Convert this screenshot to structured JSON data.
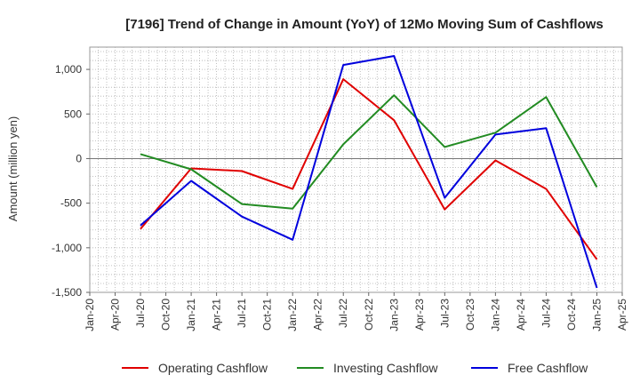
{
  "chart_data": {
    "type": "line",
    "title": "[7196]  Trend of Change in Amount (YoY) of 12Mo Moving Sum of Cashflows",
    "xlabel": "",
    "ylabel": "Amount (million yen)",
    "ylim": [
      -1500,
      1250
    ],
    "yticks": [
      1000,
      500,
      0,
      -500,
      -1000,
      -1500
    ],
    "ytick_labels": [
      "1,000",
      "500",
      "0",
      "-500",
      "-1,000",
      "-1,500"
    ],
    "categories": [
      "Jan-20",
      "Apr-20",
      "Jul-20",
      "Oct-20",
      "Jan-21",
      "Apr-21",
      "Jul-21",
      "Oct-21",
      "Jan-22",
      "Apr-22",
      "Jul-22",
      "Oct-22",
      "Jan-23",
      "Apr-23",
      "Jul-23",
      "Oct-23",
      "Jan-24",
      "Apr-24",
      "Jul-24",
      "Oct-24",
      "Jan-25",
      "Apr-25"
    ],
    "grid": true,
    "legend_position": "bottom",
    "series": [
      {
        "name": "Operating Cashflow",
        "color": "#e00000",
        "values": [
          null,
          null,
          -790,
          null,
          -110,
          null,
          -140,
          null,
          -340,
          null,
          890,
          null,
          430,
          null,
          -570,
          null,
          -20,
          null,
          -340,
          null,
          -1130,
          null
        ]
      },
      {
        "name": "Investing Cashflow",
        "color": "#228b22",
        "values": [
          null,
          null,
          50,
          null,
          -120,
          null,
          -510,
          null,
          -560,
          null,
          160,
          null,
          710,
          null,
          130,
          null,
          290,
          null,
          690,
          null,
          -320,
          null
        ]
      },
      {
        "name": "Free Cashflow",
        "color": "#0000dd",
        "values": [
          null,
          null,
          -750,
          null,
          -250,
          null,
          -650,
          null,
          -910,
          null,
          1050,
          null,
          1150,
          null,
          -440,
          null,
          270,
          null,
          340,
          null,
          -1450,
          null
        ]
      }
    ]
  }
}
